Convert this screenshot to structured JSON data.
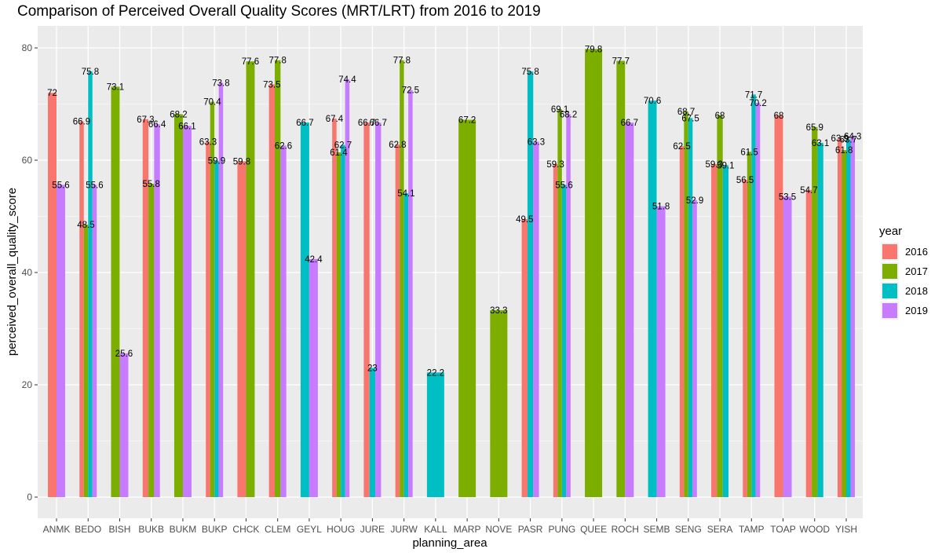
{
  "chart_data": {
    "type": "bar",
    "title": "Comparison of Perceived Overall Quality Scores (MRT/LRT) from 2016 to 2019",
    "xlabel": "planning_area",
    "ylabel": "perceived_overall_quality_score",
    "ylim": [
      0,
      82
    ],
    "yticks": [
      0,
      20,
      40,
      60,
      80
    ],
    "grid": true,
    "legend": {
      "title": "year",
      "position": "right"
    },
    "categories": [
      "ANMK",
      "BEDO",
      "BISH",
      "BUKB",
      "BUKM",
      "BUKP",
      "CHCK",
      "CLEM",
      "GEYL",
      "HOUG",
      "JURE",
      "JURW",
      "KALL",
      "MARP",
      "NOVE",
      "PASR",
      "PUNG",
      "QUEE",
      "ROCH",
      "SEMB",
      "SENG",
      "SERA",
      "TAMP",
      "TOAP",
      "WOOD",
      "YISH"
    ],
    "series": [
      {
        "name": "2016",
        "color": "#F8766D",
        "values": [
          72,
          66.9,
          null,
          67.3,
          null,
          63.3,
          59.8,
          73.5,
          null,
          67.4,
          66.7,
          62.8,
          null,
          null,
          null,
          49.5,
          59.3,
          null,
          null,
          null,
          62.5,
          59.3,
          56.5,
          68,
          54.7,
          63.9
        ]
      },
      {
        "name": "2017",
        "color": "#7CAE00",
        "values": [
          null,
          48.5,
          73.1,
          55.8,
          68.2,
          70.4,
          77.6,
          77.8,
          null,
          61.4,
          null,
          77.8,
          null,
          67.2,
          33.3,
          null,
          69.1,
          79.8,
          77.7,
          null,
          68.7,
          68,
          61.5,
          null,
          65.9,
          61.8
        ]
      },
      {
        "name": "2018",
        "color": "#00BFC4",
        "values": [
          null,
          75.8,
          null,
          null,
          null,
          59.9,
          null,
          null,
          66.7,
          62.7,
          23,
          54.1,
          22.2,
          null,
          null,
          75.8,
          55.6,
          null,
          null,
          70.6,
          67.5,
          59.1,
          71.7,
          null,
          63.1,
          63.7
        ]
      },
      {
        "name": "2019",
        "color": "#C77CFF",
        "values": [
          55.6,
          55.6,
          25.6,
          66.4,
          66.1,
          73.8,
          null,
          62.6,
          42.4,
          74.4,
          66.7,
          72.5,
          null,
          null,
          null,
          63.3,
          68.2,
          null,
          66.7,
          51.8,
          52.9,
          null,
          70.2,
          53.5,
          null,
          64.3
        ]
      }
    ]
  }
}
